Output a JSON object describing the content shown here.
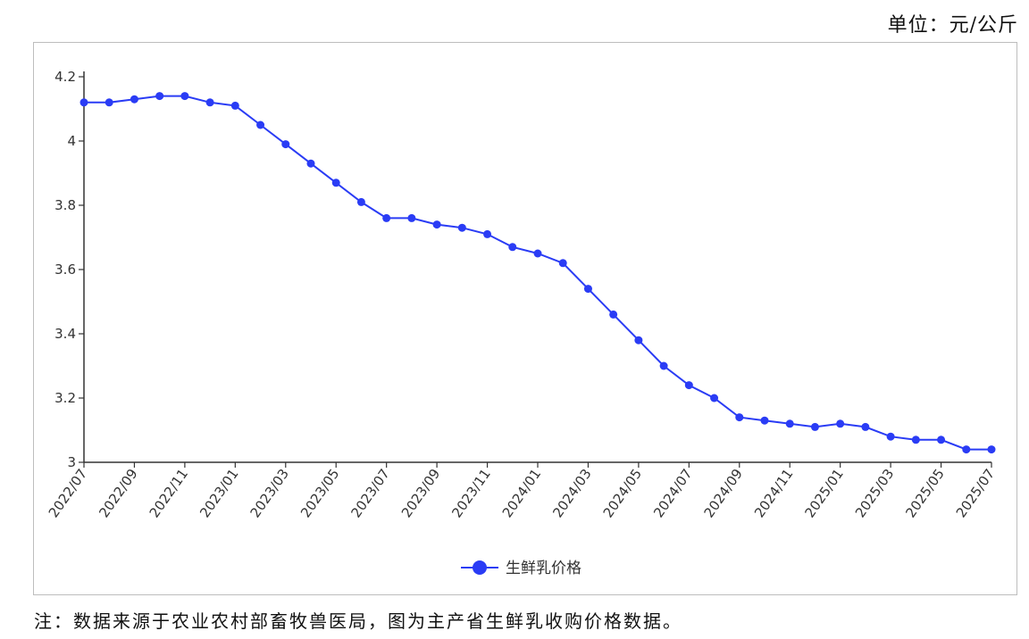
{
  "unit_label": "单位：元/公斤",
  "footnote": "注：数据来源于农业农村部畜牧兽医局，图为主产省生鲜乳收购价格数据。",
  "colors": {
    "series": "#2a3cf5",
    "axis": "#333333"
  },
  "chart_data": {
    "type": "line",
    "title": "",
    "xlabel": "",
    "ylabel": "",
    "ylim": [
      3,
      4.2
    ],
    "yticks": [
      3,
      3.2,
      3.4,
      3.6,
      3.8,
      4,
      4.2
    ],
    "ytick_labels": [
      "3",
      "3.2",
      "3.4",
      "3.6",
      "3.8",
      "4",
      "4.2"
    ],
    "grid": false,
    "legend_position": "bottom-center",
    "x": [
      "2022/07",
      "2022/08",
      "2022/09",
      "2022/10",
      "2022/11",
      "2022/12",
      "2023/01",
      "2023/02",
      "2023/03",
      "2023/04",
      "2023/05",
      "2023/06",
      "2023/07",
      "2023/08",
      "2023/09",
      "2023/10",
      "2023/11",
      "2023/12",
      "2024/01",
      "2024/02",
      "2024/03",
      "2024/04",
      "2024/05",
      "2024/06",
      "2024/07",
      "2024/08",
      "2024/09",
      "2024/10",
      "2024/11",
      "2024/12",
      "2025/01",
      "2025/02",
      "2025/03",
      "2025/04",
      "2025/05",
      "2025/06",
      "2025/07"
    ],
    "xtick_labels": [
      "2022/07",
      "2022/09",
      "2022/11",
      "2023/01",
      "2023/03",
      "2023/05",
      "2023/07",
      "2023/09",
      "2023/11",
      "2024/01",
      "2024/03",
      "2024/05",
      "2024/07",
      "2024/09",
      "2024/11",
      "2025/01",
      "2025/03",
      "2025/05",
      "2025/07"
    ],
    "series": [
      {
        "name": "生鲜乳价格",
        "values": [
          4.12,
          4.12,
          4.13,
          4.14,
          4.14,
          4.12,
          4.11,
          4.05,
          3.99,
          3.93,
          3.87,
          3.81,
          3.76,
          3.76,
          3.74,
          3.73,
          3.71,
          3.67,
          3.65,
          3.62,
          3.54,
          3.46,
          3.38,
          3.3,
          3.24,
          3.2,
          3.14,
          3.13,
          3.12,
          3.11,
          3.12,
          3.11,
          3.08,
          3.07,
          3.07,
          3.04,
          3.04
        ]
      }
    ]
  }
}
